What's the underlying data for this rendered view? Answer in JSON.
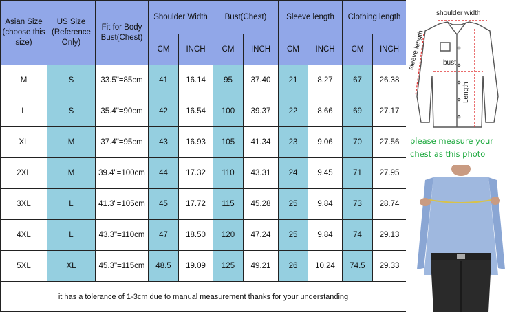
{
  "table": {
    "headers": {
      "asian_size": "Asian Size\n(choose\nthis size)",
      "us_size": "US Size\n(Reference\nOnly)",
      "fit_for_body": "Fit for Body\nBust(Chest)",
      "shoulder_width": "Shoulder Width",
      "bust": "Bust(Chest)",
      "sleeve_length": "Sleeve length",
      "clothing_length": "Clothing length",
      "cm": "CM",
      "inch": "INCH"
    },
    "rows": [
      {
        "asian": "M",
        "us": "S",
        "fit": "33.5\"=85cm",
        "shoulder_cm": "41",
        "shoulder_inch": "16.14",
        "bust_cm": "95",
        "bust_inch": "37.40",
        "sleeve_cm": "21",
        "sleeve_inch": "8.27",
        "length_cm": "67",
        "length_inch": "26.38"
      },
      {
        "asian": "L",
        "us": "S",
        "fit": "35.4\"=90cm",
        "shoulder_cm": "42",
        "shoulder_inch": "16.54",
        "bust_cm": "100",
        "bust_inch": "39.37",
        "sleeve_cm": "22",
        "sleeve_inch": "8.66",
        "length_cm": "69",
        "length_inch": "27.17"
      },
      {
        "asian": "XL",
        "us": "M",
        "fit": "37.4\"=95cm",
        "shoulder_cm": "43",
        "shoulder_inch": "16.93",
        "bust_cm": "105",
        "bust_inch": "41.34",
        "sleeve_cm": "23",
        "sleeve_inch": "9.06",
        "length_cm": "70",
        "length_inch": "27.56"
      },
      {
        "asian": "2XL",
        "us": "M",
        "fit": "39.4\"=100cm",
        "shoulder_cm": "44",
        "shoulder_inch": "17.32",
        "bust_cm": "110",
        "bust_inch": "43.31",
        "sleeve_cm": "24",
        "sleeve_inch": "9.45",
        "length_cm": "71",
        "length_inch": "27.95"
      },
      {
        "asian": "3XL",
        "us": "L",
        "fit": "41.3\"=105cm",
        "shoulder_cm": "45",
        "shoulder_inch": "17.72",
        "bust_cm": "115",
        "bust_inch": "45.28",
        "sleeve_cm": "25",
        "sleeve_inch": "9.84",
        "length_cm": "73",
        "length_inch": "28.74"
      },
      {
        "asian": "4XL",
        "us": "L",
        "fit": "43.3\"=110cm",
        "shoulder_cm": "47",
        "shoulder_inch": "18.50",
        "bust_cm": "120",
        "bust_inch": "47.24",
        "sleeve_cm": "25",
        "sleeve_inch": "9.84",
        "length_cm": "74",
        "length_inch": "29.13"
      },
      {
        "asian": "5XL",
        "us": "XL",
        "fit": "45.3\"=115cm",
        "shoulder_cm": "48.5",
        "shoulder_inch": "19.09",
        "bust_cm": "125",
        "bust_inch": "49.21",
        "sleeve_cm": "26",
        "sleeve_inch": "10.24",
        "length_cm": "74.5",
        "length_inch": "29.33"
      }
    ],
    "note": "it has a tolerance of 1-3cm due to manual measurement thanks for your understanding"
  },
  "diagram": {
    "shoulder_width": "shoulder width",
    "bust": "bust",
    "sleeve_length": "sleeve length",
    "length": "Length",
    "measure_note_line1": "please measure your",
    "measure_note_line2": "chest as this photo"
  },
  "colors": {
    "header_bg": "#91a7e8",
    "cell_blue": "#95cfe0",
    "note_green": "#1aa83c",
    "measure_red": "#e23b3b"
  }
}
